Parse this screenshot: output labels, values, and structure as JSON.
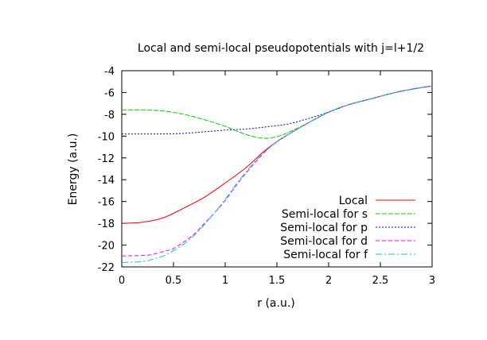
{
  "chart_data": {
    "type": "line",
    "title": "Local and semi-local pseudopotentials with j=l+1/2",
    "xlabel": "r (a.u.)",
    "ylabel": "Energy (a.u.)",
    "xlim": [
      0,
      3
    ],
    "ylim": [
      -22,
      -4
    ],
    "xticks": [
      0,
      0.5,
      1,
      1.5,
      2,
      2.5,
      3
    ],
    "yticks": [
      -22,
      -20,
      -18,
      -16,
      -14,
      -12,
      -10,
      -8,
      -6,
      -4
    ],
    "xtick_labels": [
      "0",
      "0.5",
      "1",
      "1.5",
      "2",
      "2.5",
      "3"
    ],
    "ytick_labels": [
      "-22",
      "-20",
      "-18",
      "-16",
      "-14",
      "-12",
      "-10",
      "-8",
      "-6",
      "-4"
    ],
    "grid": false,
    "legend_position": "bottom-right",
    "series": [
      {
        "name": "Local",
        "color": "#ff0000",
        "dash": "solid",
        "x": [
          0,
          0.2,
          0.4,
          0.6,
          0.8,
          1.0,
          1.2,
          1.4,
          1.6,
          1.8,
          2.0,
          2.2,
          2.4,
          2.6,
          2.8,
          3.0
        ],
        "y": [
          -18.0,
          -17.9,
          -17.5,
          -16.6,
          -15.6,
          -14.3,
          -12.9,
          -11.2,
          -9.9,
          -8.8,
          -7.8,
          -7.1,
          -6.6,
          -6.1,
          -5.7,
          -5.4
        ]
      },
      {
        "name": "Semi-local for s",
        "color": "#00cc00",
        "dash": "long",
        "x": [
          0,
          0.2,
          0.4,
          0.6,
          0.8,
          1.0,
          1.1,
          1.2,
          1.3,
          1.4,
          1.5,
          1.6,
          1.8,
          2.0,
          2.2,
          2.4,
          2.6,
          2.8,
          3.0
        ],
        "y": [
          -7.6,
          -7.6,
          -7.7,
          -8.0,
          -8.5,
          -9.1,
          -9.5,
          -9.85,
          -10.1,
          -10.2,
          -10.05,
          -9.7,
          -8.8,
          -7.8,
          -7.1,
          -6.6,
          -6.1,
          -5.7,
          -5.4
        ]
      },
      {
        "name": "Semi-local for p",
        "color": "#0000cc",
        "dash": "dotted",
        "x": [
          0,
          0.2,
          0.4,
          0.6,
          0.8,
          1.0,
          1.2,
          1.4,
          1.6,
          1.8,
          2.0,
          2.2,
          2.4,
          2.6,
          2.8,
          3.0
        ],
        "y": [
          -9.8,
          -9.8,
          -9.8,
          -9.75,
          -9.6,
          -9.45,
          -9.35,
          -9.15,
          -8.9,
          -8.4,
          -7.8,
          -7.1,
          -6.6,
          -6.1,
          -5.7,
          -5.4
        ]
      },
      {
        "name": "Semi-local for d",
        "color": "#ff00ff",
        "dash": "dash",
        "x": [
          0,
          0.2,
          0.3,
          0.4,
          0.5,
          0.6,
          0.7,
          0.8,
          0.9,
          1.0,
          1.1,
          1.2,
          1.3,
          1.4,
          1.5,
          1.6,
          1.8,
          2.0,
          2.2,
          2.4,
          2.6,
          2.8,
          3.0
        ],
        "y": [
          -21.0,
          -20.95,
          -20.85,
          -20.6,
          -20.3,
          -19.7,
          -19.0,
          -18.0,
          -17.0,
          -15.9,
          -14.6,
          -13.4,
          -12.3,
          -11.3,
          -10.5,
          -9.9,
          -8.8,
          -7.8,
          -7.1,
          -6.6,
          -6.1,
          -5.7,
          -5.4
        ]
      },
      {
        "name": "Semi-local for f",
        "color": "#00cccc",
        "dash": "dashdot",
        "x": [
          0,
          0.2,
          0.3,
          0.4,
          0.5,
          0.6,
          0.7,
          0.8,
          0.9,
          1.0,
          1.1,
          1.2,
          1.3,
          1.4,
          1.5,
          1.6,
          1.8,
          2.0,
          2.2,
          2.4,
          2.6,
          2.8,
          3.0
        ],
        "y": [
          -21.6,
          -21.5,
          -21.3,
          -21.0,
          -20.5,
          -19.9,
          -19.1,
          -18.1,
          -17.0,
          -15.8,
          -14.5,
          -13.3,
          -12.2,
          -11.3,
          -10.5,
          -9.9,
          -8.8,
          -7.8,
          -7.1,
          -6.6,
          -6.1,
          -5.7,
          -5.4
        ]
      }
    ]
  }
}
